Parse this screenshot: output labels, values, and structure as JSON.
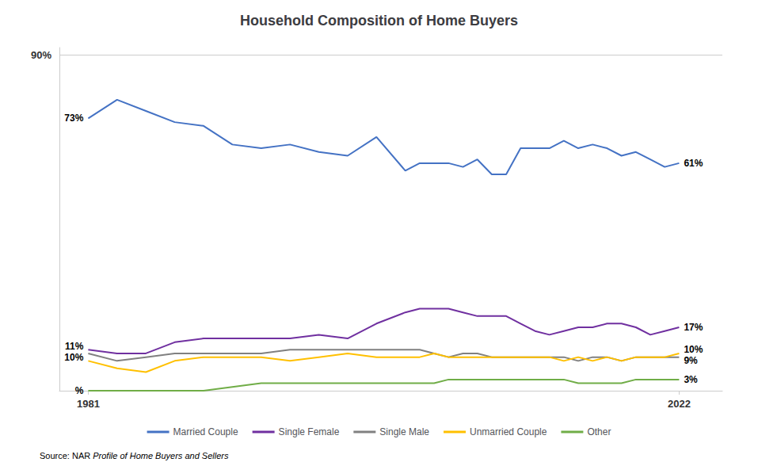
{
  "chart_data": {
    "type": "line",
    "title": "Household Composition of Home Buyers",
    "x": [
      1981,
      1983,
      1985,
      1987,
      1989,
      1991,
      1993,
      1995,
      1997,
      1999,
      2001,
      2003,
      2004,
      2005,
      2006,
      2007,
      2008,
      2009,
      2010,
      2011,
      2012,
      2013,
      2014,
      2015,
      2016,
      2017,
      2018,
      2019,
      2020,
      2021,
      2022
    ],
    "series": [
      {
        "name": "Married Couple",
        "color": "#4472C4",
        "values": [
          73,
          78,
          75,
          72,
          71,
          66,
          65,
          66,
          64,
          63,
          68,
          59,
          61,
          61,
          61,
          60,
          62,
          58,
          58,
          65,
          65,
          65,
          67,
          65,
          66,
          65,
          63,
          64,
          62,
          60,
          61
        ]
      },
      {
        "name": "Single Female",
        "color": "#7030A0",
        "values": [
          11,
          10,
          10,
          13,
          14,
          14,
          14,
          14,
          15,
          14,
          18,
          21,
          22,
          22,
          22,
          21,
          20,
          20,
          20,
          18,
          16,
          15,
          16,
          17,
          17,
          18,
          18,
          17,
          15,
          16,
          17
        ]
      },
      {
        "name": "Single Male",
        "color": "#808080",
        "values": [
          10,
          8,
          9,
          10,
          10,
          10,
          10,
          11,
          11,
          11,
          11,
          11,
          11,
          10,
          9,
          10,
          10,
          9,
          9,
          9,
          9,
          9,
          9,
          8,
          9,
          9,
          8,
          9,
          9,
          9,
          9
        ]
      },
      {
        "name": "Unmarried Couple",
        "color": "#FFC000",
        "values": [
          8,
          6,
          5,
          8,
          9,
          9,
          9,
          8,
          9,
          10,
          9,
          9,
          9,
          10,
          9,
          9,
          9,
          9,
          9,
          9,
          9,
          9,
          8,
          9,
          8,
          9,
          8,
          9,
          9,
          9,
          10
        ]
      },
      {
        "name": "Other",
        "color": "#70AD47",
        "values": [
          0,
          0,
          0,
          0,
          0,
          1,
          2,
          2,
          2,
          2,
          2,
          2,
          2,
          2,
          3,
          3,
          3,
          3,
          3,
          3,
          3,
          3,
          3,
          2,
          2,
          2,
          2,
          3,
          3,
          3,
          3
        ]
      }
    ],
    "xlim": [
      1979,
      2025
    ],
    "xticks": [
      1981,
      2022
    ],
    "ylim": [
      0,
      92
    ],
    "yticks": [
      {
        "value": 90,
        "label": "90%"
      }
    ],
    "grid": true,
    "legend": "bottom",
    "annotations": [
      {
        "text": "73%",
        "x": 1981,
        "y": 73
      },
      {
        "text": "11%",
        "x": 1981,
        "y": 11
      },
      {
        "text": "10%",
        "x": 1981,
        "y": 10
      },
      {
        "text": "%",
        "x": 1981,
        "y": 0
      },
      {
        "text": "61%",
        "x": 2022,
        "y": 61
      },
      {
        "text": "17%",
        "x": 2022,
        "y": 17
      },
      {
        "text": "10%",
        "x": 2022,
        "y": 10
      },
      {
        "text": "9%",
        "x": 2022,
        "y": 9
      },
      {
        "text": "3%",
        "x": 2022,
        "y": 3
      }
    ],
    "source": "Source: NAR ",
    "source_title": "Profile of Home Buyers and Sellers"
  }
}
